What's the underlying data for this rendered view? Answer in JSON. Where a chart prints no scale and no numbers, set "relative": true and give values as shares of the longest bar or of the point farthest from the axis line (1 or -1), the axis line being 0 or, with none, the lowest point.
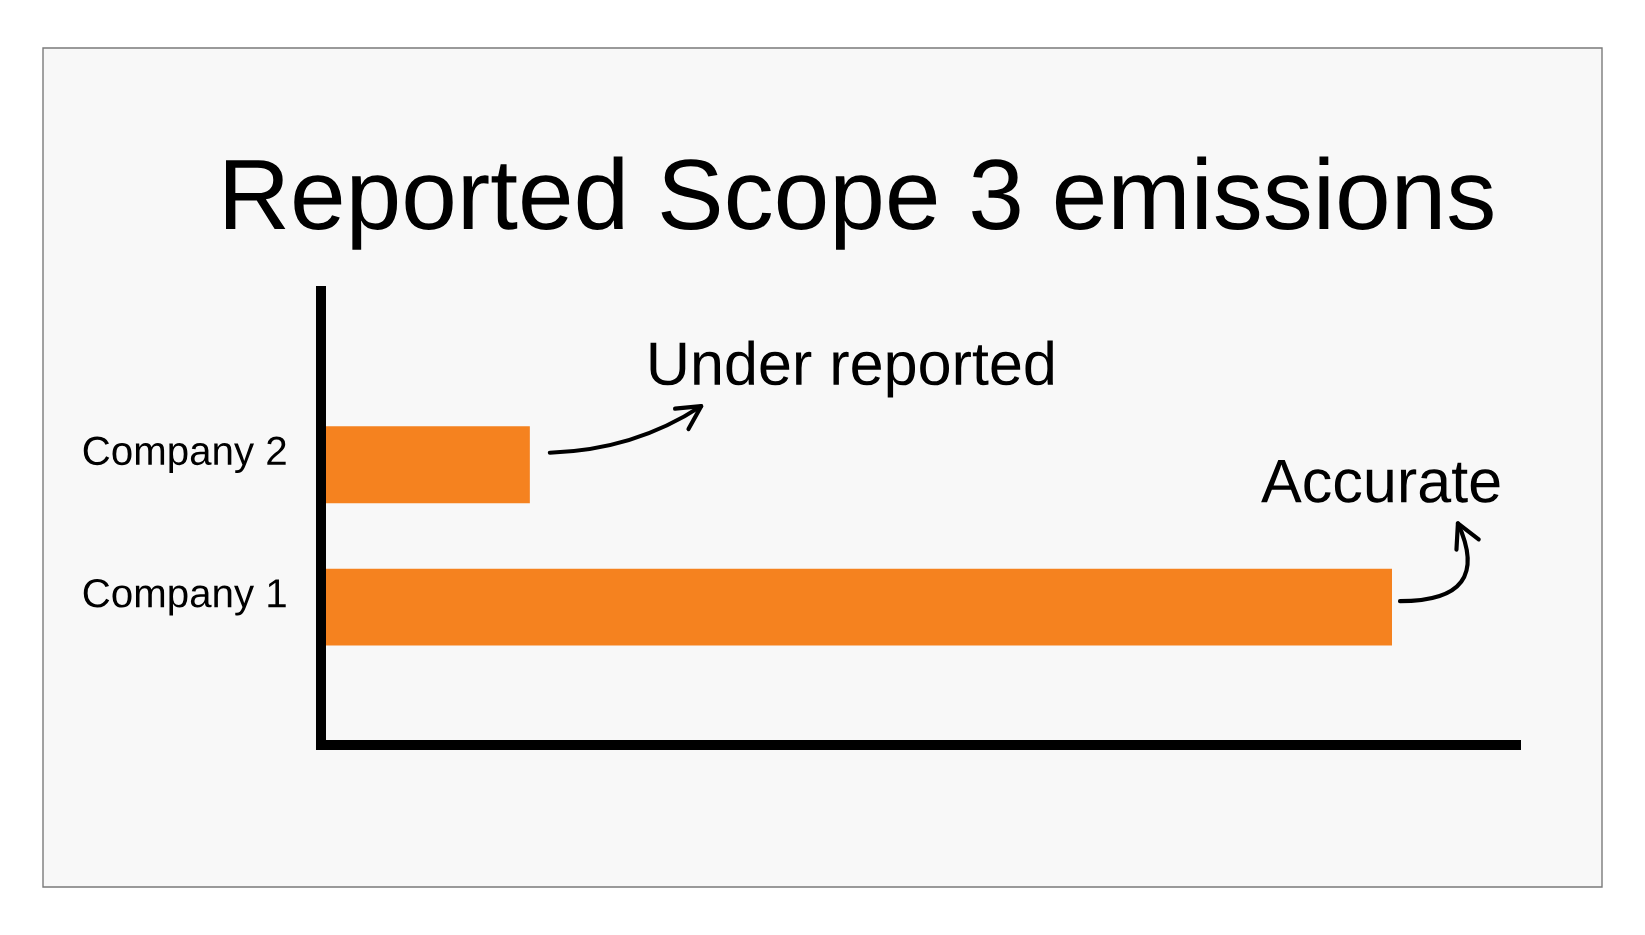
{
  "chart_data": {
    "type": "bar",
    "orientation": "horizontal",
    "relative": true,
    "title": "Reported Scope 3 emissions",
    "categories": [
      "Company 2",
      "Company 1"
    ],
    "values": [
      0.195,
      1
    ],
    "color": "#f5821f",
    "tick_labels": "y",
    "annotations": [
      {
        "text": "Under reported",
        "x": 0.195,
        "y": "Company 2"
      },
      {
        "text": "Accurate",
        "x": 1,
        "y": "Company 1"
      }
    ]
  }
}
